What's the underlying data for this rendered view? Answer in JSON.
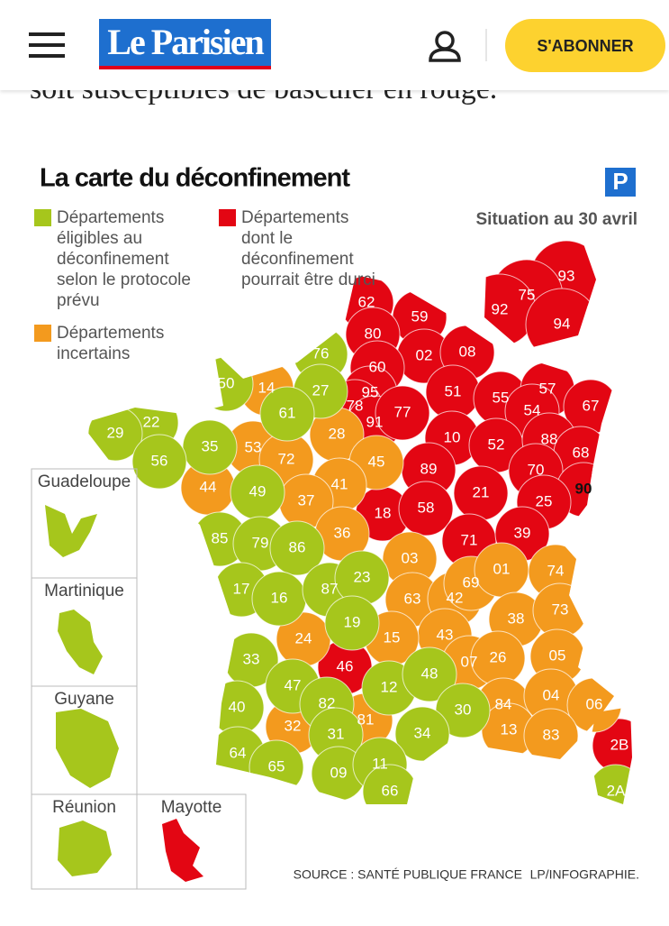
{
  "header": {
    "logo": "Le Parisien",
    "subscribe": "S'ABONNER"
  },
  "article_text": "soit susceptibles de basculer en rouge.",
  "map": {
    "title": "La carte du déconfinement",
    "date": "Situation au 30 avril",
    "brand": "P",
    "legend": [
      {
        "label": "Départements éligibles au déconfinement selon le protocole prévu",
        "color": "#a6c61c"
      },
      {
        "label": "Départements dont le déconfinement pourrait être durci",
        "color": "#e30613"
      },
      {
        "label": "Départements incertains",
        "color": "#f39a1e"
      }
    ],
    "departments": [
      {
        "label": "62",
        "color": "#e30613"
      },
      {
        "label": "59",
        "color": "#e30613"
      },
      {
        "label": "80",
        "color": "#e30613"
      },
      {
        "label": "02",
        "color": "#e30613"
      },
      {
        "label": "08",
        "color": "#e30613"
      },
      {
        "label": "60",
        "color": "#e30613"
      },
      {
        "label": "95",
        "color": "#e30613"
      },
      {
        "label": "78",
        "color": "#e30613"
      },
      {
        "label": "91",
        "color": "#e30613"
      },
      {
        "label": "77",
        "color": "#e30613"
      },
      {
        "label": "51",
        "color": "#e30613"
      },
      {
        "label": "55",
        "color": "#e30613"
      },
      {
        "label": "57",
        "color": "#e30613"
      },
      {
        "label": "67",
        "color": "#e30613"
      },
      {
        "label": "54",
        "color": "#e30613"
      },
      {
        "label": "10",
        "color": "#e30613"
      },
      {
        "label": "52",
        "color": "#e30613"
      },
      {
        "label": "88",
        "color": "#e30613"
      },
      {
        "label": "68",
        "color": "#e30613"
      },
      {
        "label": "89",
        "color": "#e30613"
      },
      {
        "label": "70",
        "color": "#e30613"
      },
      {
        "label": "90",
        "color": "#e30613"
      },
      {
        "label": "21",
        "color": "#e30613"
      },
      {
        "label": "25",
        "color": "#e30613"
      },
      {
        "label": "18",
        "color": "#e30613"
      },
      {
        "label": "58",
        "color": "#e30613"
      },
      {
        "label": "71",
        "color": "#e30613"
      },
      {
        "label": "39",
        "color": "#e30613"
      },
      {
        "label": "46",
        "color": "#e30613"
      },
      {
        "label": "2B",
        "color": "#e30613"
      },
      {
        "label": "93",
        "color": "#e30613"
      },
      {
        "label": "75",
        "color": "#e30613"
      },
      {
        "label": "92",
        "color": "#e30613"
      },
      {
        "label": "94",
        "color": "#e30613"
      },
      {
        "label": "14",
        "color": "#f39a1e"
      },
      {
        "label": "28",
        "color": "#f39a1e"
      },
      {
        "label": "45",
        "color": "#f39a1e"
      },
      {
        "label": "53",
        "color": "#f39a1e"
      },
      {
        "label": "72",
        "color": "#f39a1e"
      },
      {
        "label": "41",
        "color": "#f39a1e"
      },
      {
        "label": "44",
        "color": "#f39a1e"
      },
      {
        "label": "37",
        "color": "#f39a1e"
      },
      {
        "label": "36",
        "color": "#f39a1e"
      },
      {
        "label": "03",
        "color": "#f39a1e"
      },
      {
        "label": "63",
        "color": "#f39a1e"
      },
      {
        "label": "42",
        "color": "#f39a1e"
      },
      {
        "label": "69",
        "color": "#f39a1e"
      },
      {
        "label": "01",
        "color": "#f39a1e"
      },
      {
        "label": "74",
        "color": "#f39a1e"
      },
      {
        "label": "38",
        "color": "#f39a1e"
      },
      {
        "label": "73",
        "color": "#f39a1e"
      },
      {
        "label": "43",
        "color": "#f39a1e"
      },
      {
        "label": "15",
        "color": "#f39a1e"
      },
      {
        "label": "07",
        "color": "#f39a1e"
      },
      {
        "label": "26",
        "color": "#f39a1e"
      },
      {
        "label": "05",
        "color": "#f39a1e"
      },
      {
        "label": "24",
        "color": "#f39a1e"
      },
      {
        "label": "84",
        "color": "#f39a1e"
      },
      {
        "label": "04",
        "color": "#f39a1e"
      },
      {
        "label": "06",
        "color": "#f39a1e"
      },
      {
        "label": "13",
        "color": "#f39a1e"
      },
      {
        "label": "83",
        "color": "#f39a1e"
      },
      {
        "label": "32",
        "color": "#f39a1e"
      },
      {
        "label": "81",
        "color": "#f39a1e"
      },
      {
        "label": "76",
        "color": "#a6c61c"
      },
      {
        "label": "50",
        "color": "#a6c61c"
      },
      {
        "label": "27",
        "color": "#a6c61c"
      },
      {
        "label": "61",
        "color": "#a6c61c"
      },
      {
        "label": "22",
        "color": "#a6c61c"
      },
      {
        "label": "29",
        "color": "#a6c61c"
      },
      {
        "label": "35",
        "color": "#a6c61c"
      },
      {
        "label": "56",
        "color": "#a6c61c"
      },
      {
        "label": "49",
        "color": "#a6c61c"
      },
      {
        "label": "85",
        "color": "#a6c61c"
      },
      {
        "label": "79",
        "color": "#a6c61c"
      },
      {
        "label": "86",
        "color": "#a6c61c"
      },
      {
        "label": "17",
        "color": "#a6c61c"
      },
      {
        "label": "16",
        "color": "#a6c61c"
      },
      {
        "label": "87",
        "color": "#a6c61c"
      },
      {
        "label": "23",
        "color": "#a6c61c"
      },
      {
        "label": "19",
        "color": "#a6c61c"
      },
      {
        "label": "33",
        "color": "#a6c61c"
      },
      {
        "label": "47",
        "color": "#a6c61c"
      },
      {
        "label": "40",
        "color": "#a6c61c"
      },
      {
        "label": "82",
        "color": "#a6c61c"
      },
      {
        "label": "12",
        "color": "#a6c61c"
      },
      {
        "label": "48",
        "color": "#a6c61c"
      },
      {
        "label": "30",
        "color": "#a6c61c"
      },
      {
        "label": "31",
        "color": "#a6c61c"
      },
      {
        "label": "34",
        "color": "#a6c61c"
      },
      {
        "label": "64",
        "color": "#a6c61c"
      },
      {
        "label": "65",
        "color": "#a6c61c"
      },
      {
        "label": "09",
        "color": "#a6c61c"
      },
      {
        "label": "11",
        "color": "#a6c61c"
      },
      {
        "label": "66",
        "color": "#a6c61c"
      },
      {
        "label": "2A",
        "color": "#a6c61c"
      }
    ],
    "overseas": [
      {
        "label": "Guadeloupe",
        "color": "#a6c61c"
      },
      {
        "label": "Martinique",
        "color": "#a6c61c"
      },
      {
        "label": "Guyane",
        "color": "#a6c61c"
      },
      {
        "label": "Réunion",
        "color": "#a6c61c"
      },
      {
        "label": "Mayotte",
        "color": "#e30613"
      }
    ],
    "source": "SOURCE : SANTÉ PUBLIQUE FRANCE",
    "credit": "LP/INFOGRAPHIE."
  }
}
